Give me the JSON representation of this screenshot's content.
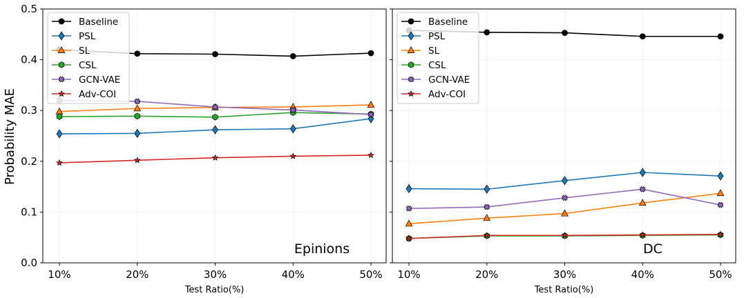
{
  "chart_data": [
    {
      "type": "line",
      "panel_label": "Epinions",
      "x": [
        "10%",
        "20%",
        "30%",
        "40%",
        "50%"
      ],
      "xlabel": "Test Ratio(%)",
      "ylabel": "Probability MAE",
      "ylim": [
        0.0,
        0.5
      ],
      "yticks": [
        "0.0",
        "0.1",
        "0.2",
        "0.3",
        "0.4",
        "0.5"
      ],
      "grid": true,
      "legend": "top-left",
      "series": [
        {
          "name": "Baseline",
          "color": "#000000",
          "marker": "circle",
          "values": [
            0.42,
            0.412,
            0.411,
            0.407,
            0.413
          ]
        },
        {
          "name": "PSL",
          "color": "#1f77b4",
          "marker": "thin-diamond",
          "values": [
            0.254,
            0.255,
            0.262,
            0.264,
            0.284
          ]
        },
        {
          "name": "SL",
          "color": "#ff7f0e",
          "marker": "triangle",
          "values": [
            0.298,
            0.304,
            0.306,
            0.307,
            0.311
          ]
        },
        {
          "name": "CSL",
          "color": "#2ca02c",
          "marker": "hexagon",
          "values": [
            0.288,
            0.289,
            0.287,
            0.296,
            0.293
          ]
        },
        {
          "name": "GCN-VAE",
          "color": "#9467bd",
          "marker": "x-filled",
          "values": [
            0.32,
            0.318,
            0.307,
            0.301,
            0.292
          ]
        },
        {
          "name": "Adv-COI",
          "color": "#d62728",
          "marker": "star",
          "values": [
            0.197,
            0.202,
            0.207,
            0.21,
            0.212
          ]
        }
      ]
    },
    {
      "type": "line",
      "panel_label": "DC",
      "x": [
        "10%",
        "20%",
        "30%",
        "40%",
        "50%"
      ],
      "xlabel": "Test Ratio(%)",
      "ylim": [
        0.0,
        0.5
      ],
      "grid": true,
      "legend": "top-left",
      "series": [
        {
          "name": "Baseline",
          "color": "#000000",
          "marker": "circle",
          "values": [
            0.458,
            0.454,
            0.453,
            0.446,
            0.446
          ]
        },
        {
          "name": "PSL",
          "color": "#1f77b4",
          "marker": "thin-diamond",
          "values": [
            0.146,
            0.145,
            0.162,
            0.178,
            0.171
          ]
        },
        {
          "name": "SL",
          "color": "#ff7f0e",
          "marker": "triangle",
          "values": [
            0.077,
            0.088,
            0.097,
            0.118,
            0.137
          ]
        },
        {
          "name": "CSL",
          "color": "#2ca02c",
          "marker": "hexagon",
          "values": [
            0.048,
            0.053,
            0.053,
            0.054,
            0.055
          ]
        },
        {
          "name": "GCN-VAE",
          "color": "#9467bd",
          "marker": "x-filled",
          "values": [
            0.107,
            0.11,
            0.128,
            0.145,
            0.114
          ]
        },
        {
          "name": "Adv-COI",
          "color": "#d62728",
          "marker": "star",
          "values": [
            0.048,
            0.054,
            0.054,
            0.055,
            0.056
          ]
        }
      ]
    }
  ]
}
